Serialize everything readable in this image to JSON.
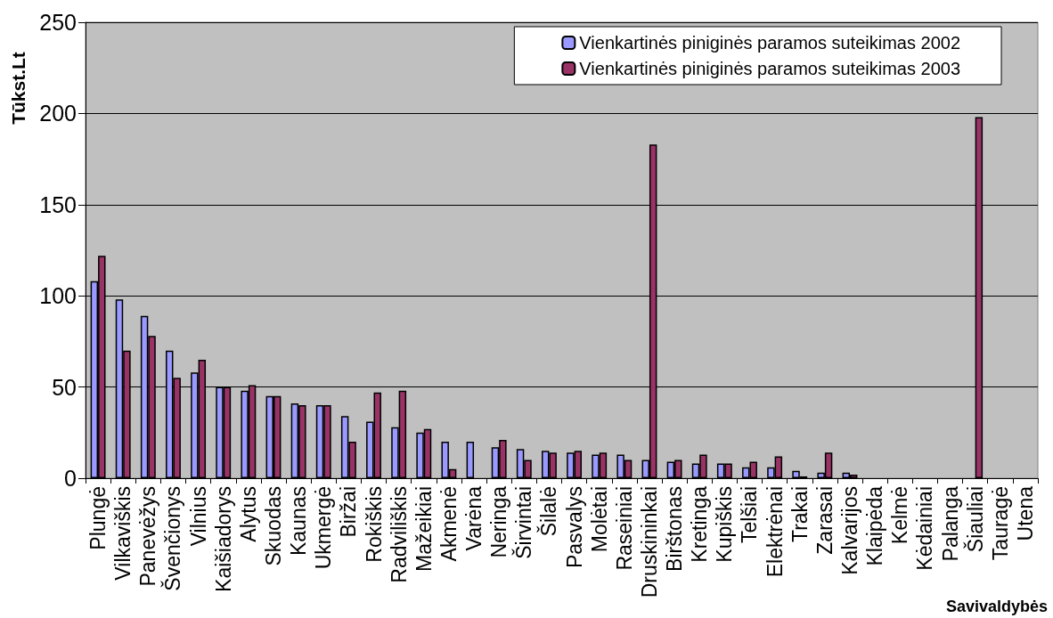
{
  "chart_data": {
    "type": "bar",
    "ylabel": "Tūkst.Lt",
    "xlabel": "Savivaldybės",
    "categories": [
      "Plungė",
      "Vilkaviškis",
      "Panevėžys",
      "Švenčionys",
      "Vilnius",
      "Kaišiadorys",
      "Alytus",
      "Skuodas",
      "Kaunas",
      "Ukmergė",
      "Biržai",
      "Rokiškis",
      "Radviliškis",
      "Mažeikiai",
      "Akmenė",
      "Varėna",
      "Neringa",
      "Širvintai",
      "Šilalė",
      "Pasvalys",
      "Molėtai",
      "Raseiniai",
      "Druskininkai",
      "Birštonas",
      "Kretinga",
      "Kupiškis",
      "Telšiai",
      "Elektrėnai",
      "Trakai",
      "Zarasai",
      "Kalvarijos",
      "Klaipėda",
      "Kelmė",
      "Kėdainiai",
      "Palanga",
      "Šiauliai",
      "Tauragė",
      "Utena"
    ],
    "series": [
      {
        "name": "Vienkartinės piniginės paramos suteikimas 2002",
        "color": "#9999ff",
        "values": [
          108,
          98,
          89,
          70,
          58,
          50,
          48,
          45,
          41,
          40,
          34,
          31,
          28,
          25,
          20,
          20,
          17,
          16,
          15,
          14,
          13,
          13,
          10,
          9,
          8,
          8,
          6,
          6,
          4,
          3,
          3,
          null,
          null,
          null,
          null,
          null,
          null,
          null
        ]
      },
      {
        "name": "Vienkartinės piniginės paramos suteikimas 2003",
        "color": "#993366",
        "values": [
          122,
          70,
          78,
          55,
          65,
          50,
          51,
          45,
          40,
          40,
          20,
          47,
          48,
          27,
          5,
          null,
          21,
          10,
          14,
          15,
          14,
          10,
          183,
          10,
          13,
          8,
          9,
          12,
          1,
          14,
          2,
          null,
          null,
          null,
          null,
          198,
          null,
          null
        ]
      }
    ],
    "ylim": [
      0,
      250
    ],
    "yticks": [
      0,
      50,
      100,
      150,
      200,
      250
    ],
    "grid": "y",
    "legend": "top right"
  }
}
